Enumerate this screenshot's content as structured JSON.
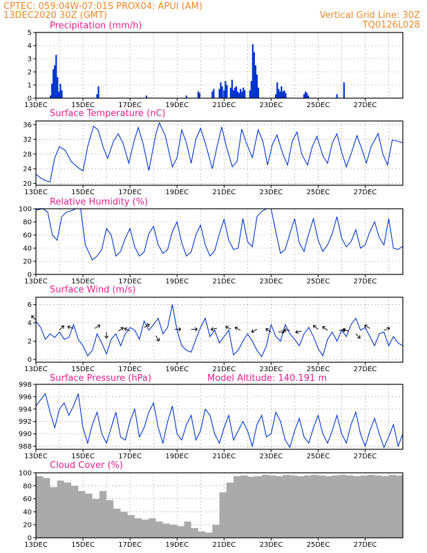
{
  "header": {
    "line1_left": "CPTEC:   059:04W-07:01S   PROX04: APUI (AM)",
    "line2_left": "13DEC2020 30Z (GMT)",
    "line1_right": "Vertical Grid Line: 30Z",
    "line2_right": "TQ0126L028"
  },
  "colors": {
    "header": "#e8892b",
    "title": "#e0218a",
    "series": "#0033cc",
    "cloud": "#aaaaaa"
  },
  "x_axis": {
    "tick_labels": [
      "13DEC",
      "15DEC",
      "17DEC",
      "19DEC",
      "21DEC",
      "23DEC",
      "25DEC",
      "27DEC"
    ],
    "tick_days": [
      0,
      2,
      4,
      6,
      8,
      10,
      12,
      14
    ],
    "range_days": [
      0,
      15.6
    ]
  },
  "chart_data": [
    {
      "type": "bar",
      "title": "Precipitation (mm/h)",
      "ylim": [
        0,
        5
      ],
      "yticks": [
        0,
        1,
        2,
        3,
        4,
        5
      ],
      "x_unit": "days since 13DEC 00Z",
      "points": [
        [
          0.62,
          0.2
        ],
        [
          0.68,
          1.1
        ],
        [
          0.74,
          2.2
        ],
        [
          0.8,
          2.5
        ],
        [
          0.86,
          3.3
        ],
        [
          0.92,
          1.6
        ],
        [
          0.98,
          0.5
        ],
        [
          1.04,
          1.1
        ],
        [
          1.1,
          0.6
        ],
        [
          2.6,
          0.3
        ],
        [
          2.66,
          0.9
        ],
        [
          4.7,
          0.2
        ],
        [
          6.4,
          0.2
        ],
        [
          6.9,
          0.5
        ],
        [
          6.96,
          0.4
        ],
        [
          7.5,
          0.5
        ],
        [
          7.56,
          0.7
        ],
        [
          7.8,
          0.7
        ],
        [
          7.86,
          1.2
        ],
        [
          7.92,
          0.9
        ],
        [
          8.0,
          0.6
        ],
        [
          8.06,
          1.3
        ],
        [
          8.12,
          1.0
        ],
        [
          8.28,
          0.8
        ],
        [
          8.34,
          1.4
        ],
        [
          8.4,
          0.6
        ],
        [
          8.46,
          0.8
        ],
        [
          8.52,
          0.9
        ],
        [
          8.58,
          0.5
        ],
        [
          8.64,
          0.4
        ],
        [
          8.7,
          0.7
        ],
        [
          8.76,
          0.5
        ],
        [
          8.82,
          0.8
        ],
        [
          8.88,
          0.6
        ],
        [
          9.1,
          0.6
        ],
        [
          9.16,
          1.3
        ],
        [
          9.22,
          4.1
        ],
        [
          9.28,
          3.5
        ],
        [
          9.34,
          2.5
        ],
        [
          9.4,
          1.8
        ],
        [
          9.46,
          0.8
        ],
        [
          10.2,
          0.3
        ],
        [
          10.26,
          1.2
        ],
        [
          10.32,
          0.7
        ],
        [
          10.38,
          0.5
        ],
        [
          10.44,
          0.9
        ],
        [
          10.5,
          0.5
        ],
        [
          10.56,
          0.6
        ],
        [
          10.62,
          0.4
        ],
        [
          11.4,
          0.3
        ],
        [
          11.46,
          0.5
        ],
        [
          11.52,
          0.4
        ],
        [
          11.58,
          0.2
        ],
        [
          12.8,
          0.3
        ],
        [
          13.1,
          1.2
        ]
      ]
    },
    {
      "type": "line",
      "title": "Surface Temperature (nC)",
      "ylim": [
        19.5,
        37
      ],
      "yticks": [
        20,
        24,
        28,
        32,
        36
      ],
      "x": [
        0.0,
        0.2,
        0.4,
        0.6,
        0.8,
        1.0,
        1.25,
        1.5,
        1.75,
        2.0,
        2.2,
        2.45,
        2.65,
        2.85,
        3.05,
        3.3,
        3.5,
        3.7,
        3.95,
        4.15,
        4.35,
        4.55,
        4.8,
        5.1,
        5.25,
        5.5,
        5.8,
        6.0,
        6.2,
        6.4,
        6.6,
        6.8,
        7.0,
        7.2,
        7.5,
        7.7,
        7.9,
        8.1,
        8.35,
        8.55,
        8.75,
        8.95,
        9.2,
        9.45,
        9.65,
        9.85,
        10.05,
        10.25,
        10.5,
        10.7,
        10.9,
        11.1,
        11.3,
        11.55,
        11.75,
        11.95,
        12.2,
        12.4,
        12.6,
        12.8,
        13.0,
        13.2,
        13.45,
        13.65,
        13.85,
        14.05,
        14.25,
        14.55,
        14.75,
        14.95,
        15.15,
        15.4,
        15.6
      ],
      "values": [
        22.5,
        21.5,
        20.8,
        20.4,
        27.0,
        30.0,
        29.0,
        26.0,
        24.5,
        23.4,
        30.0,
        35.6,
        34.5,
        30.0,
        26.8,
        31.5,
        33.5,
        31.0,
        25.5,
        31.0,
        35.2,
        31.0,
        23.5,
        33.4,
        36.5,
        33.0,
        24.5,
        27.0,
        34.6,
        31.0,
        25.5,
        32.0,
        35.0,
        31.0,
        24.0,
        30.0,
        35.4,
        30.0,
        24.5,
        26.0,
        34.8,
        31.0,
        27.0,
        34.6,
        31.5,
        25.0,
        30.5,
        33.2,
        28.0,
        25.0,
        31.5,
        34.0,
        28.0,
        25.0,
        30.0,
        32.8,
        27.5,
        25.5,
        31.0,
        33.5,
        28.5,
        24.5,
        29.0,
        33.0,
        29.5,
        25.5,
        30.0,
        33.6,
        28.0,
        25.0,
        31.8,
        31.5,
        31.0
      ]
    },
    {
      "type": "line",
      "title": "Relative Humidity (%)",
      "ylim": [
        0,
        100
      ],
      "yticks": [
        0,
        20,
        40,
        60,
        80,
        100
      ],
      "x": [
        0.0,
        0.3,
        0.5,
        0.7,
        0.9,
        1.1,
        1.3,
        1.5,
        1.7,
        1.9,
        2.1,
        2.4,
        2.6,
        2.8,
        3.0,
        3.2,
        3.4,
        3.6,
        3.8,
        4.0,
        4.2,
        4.4,
        4.6,
        4.8,
        5.0,
        5.2,
        5.4,
        5.6,
        5.8,
        6.0,
        6.2,
        6.4,
        6.6,
        6.8,
        7.0,
        7.2,
        7.4,
        7.6,
        7.8,
        8.0,
        8.2,
        8.4,
        8.6,
        8.8,
        9.0,
        9.2,
        9.4,
        9.6,
        9.8,
        10.0,
        10.2,
        10.4,
        10.6,
        10.8,
        11.0,
        11.2,
        11.4,
        11.6,
        11.8,
        12.0,
        12.2,
        12.4,
        12.6,
        12.8,
        13.0,
        13.2,
        13.4,
        13.6,
        13.8,
        14.0,
        14.2,
        14.4,
        14.6,
        14.8,
        15.0,
        15.2,
        15.4,
        15.6
      ],
      "values": [
        98,
        100,
        95,
        60,
        52,
        88,
        95,
        97,
        100,
        100,
        45,
        22,
        28,
        38,
        70,
        60,
        28,
        35,
        55,
        70,
        42,
        28,
        34,
        62,
        73,
        45,
        32,
        38,
        65,
        80,
        48,
        28,
        34,
        60,
        75,
        45,
        28,
        36,
        62,
        84,
        52,
        38,
        40,
        85,
        50,
        42,
        88,
        96,
        100,
        100,
        65,
        32,
        38,
        62,
        85,
        48,
        35,
        62,
        85,
        52,
        35,
        45,
        62,
        88,
        55,
        42,
        50,
        68,
        40,
        45,
        65,
        80,
        56,
        45,
        85,
        40,
        38,
        43
      ]
    },
    {
      "type": "line",
      "title": "Surface Wind (m/s)",
      "ylim": [
        -0.3,
        6.8
      ],
      "yticks": [
        0,
        2,
        4,
        6
      ],
      "x": [
        0.0,
        0.2,
        0.4,
        0.6,
        0.8,
        1.0,
        1.2,
        1.4,
        1.6,
        1.8,
        2.0,
        2.2,
        2.4,
        2.6,
        2.8,
        3.0,
        3.2,
        3.4,
        3.6,
        3.8,
        4.0,
        4.2,
        4.4,
        4.6,
        4.8,
        5.0,
        5.2,
        5.4,
        5.6,
        5.8,
        6.0,
        6.2,
        6.4,
        6.6,
        6.8,
        7.0,
        7.2,
        7.4,
        7.6,
        7.8,
        8.0,
        8.2,
        8.4,
        8.6,
        8.8,
        9.0,
        9.2,
        9.4,
        9.6,
        9.8,
        10.0,
        10.2,
        10.4,
        10.6,
        10.8,
        11.0,
        11.2,
        11.4,
        11.6,
        11.8,
        12.0,
        12.2,
        12.4,
        12.6,
        12.8,
        13.0,
        13.2,
        13.4,
        13.6,
        13.8,
        14.0,
        14.2,
        14.4,
        14.6,
        14.8,
        15.0,
        15.2,
        15.4,
        15.6
      ],
      "values": [
        4.2,
        3.5,
        2.2,
        2.8,
        2.4,
        3.0,
        2.2,
        2.4,
        3.8,
        2.2,
        1.5,
        0.4,
        1.0,
        2.8,
        1.8,
        0.6,
        2.2,
        2.8,
        1.5,
        2.8,
        3.5,
        3.2,
        2.2,
        4.2,
        3.2,
        3.8,
        4.5,
        2.8,
        3.5,
        6.0,
        3.2,
        1.5,
        1.0,
        0.8,
        2.2,
        3.5,
        4.5,
        2.5,
        3.2,
        1.8,
        2.5,
        3.2,
        0.5,
        1.0,
        2.0,
        2.8,
        2.0,
        1.0,
        0.3,
        1.5,
        3.8,
        2.5,
        2.0,
        3.8,
        2.8,
        2.2,
        1.5,
        2.8,
        3.5,
        2.5,
        1.2,
        0.4,
        2.2,
        3.0,
        2.0,
        3.2,
        2.5,
        3.8,
        4.5,
        3.2,
        3.5,
        2.5,
        1.5,
        2.8,
        3.0,
        1.5,
        2.5,
        1.8,
        1.5
      ]
    },
    {
      "type": "line",
      "title": "Surface Pressure (hPa)",
      "annotation": "Model Altitude: 140.191 m",
      "ylim": [
        987.5,
        998
      ],
      "yticks": [
        988,
        990,
        992,
        994,
        996,
        998
      ],
      "x": [
        0.0,
        0.2,
        0.4,
        0.6,
        0.8,
        1.0,
        1.2,
        1.4,
        1.6,
        1.8,
        2.0,
        2.2,
        2.4,
        2.6,
        2.8,
        3.0,
        3.2,
        3.4,
        3.6,
        3.8,
        4.0,
        4.2,
        4.4,
        4.6,
        4.8,
        5.0,
        5.2,
        5.4,
        5.6,
        5.8,
        6.0,
        6.2,
        6.4,
        6.6,
        6.8,
        7.0,
        7.2,
        7.4,
        7.6,
        7.8,
        8.0,
        8.2,
        8.4,
        8.6,
        8.8,
        9.0,
        9.2,
        9.4,
        9.6,
        9.8,
        10.0,
        10.2,
        10.4,
        10.6,
        10.8,
        11.0,
        11.2,
        11.4,
        11.6,
        11.8,
        12.0,
        12.2,
        12.4,
        12.6,
        12.8,
        13.0,
        13.2,
        13.4,
        13.6,
        13.8,
        14.0,
        14.2,
        14.4,
        14.6,
        14.8,
        15.0,
        15.2,
        15.4,
        15.6
      ],
      "values": [
        994.5,
        995.5,
        996.5,
        993.5,
        991.0,
        994.0,
        995.0,
        993.0,
        994.5,
        996.5,
        991.0,
        988.5,
        991.5,
        993.5,
        990.0,
        988.5,
        991.0,
        993.5,
        989.5,
        989.0,
        992.0,
        994.0,
        989.5,
        991.0,
        993.5,
        995.0,
        991.0,
        988.5,
        992.0,
        994.5,
        990.0,
        989.0,
        991.5,
        993.0,
        989.0,
        990.5,
        994.0,
        993.0,
        990.0,
        988.5,
        991.0,
        993.0,
        989.0,
        990.5,
        992.0,
        990.5,
        988.0,
        991.5,
        993.0,
        989.5,
        990.0,
        993.5,
        992.0,
        989.0,
        987.8,
        990.5,
        992.5,
        989.5,
        988.5,
        991.0,
        993.0,
        990.0,
        988.5,
        990.5,
        993.0,
        990.0,
        988.5,
        991.5,
        993.5,
        990.0,
        988.0,
        990.5,
        992.5,
        990.0,
        987.8,
        989.5,
        991.5,
        988.0,
        990.0
      ]
    },
    {
      "type": "area",
      "title": "Cloud Cover (%)",
      "ylim": [
        0,
        100
      ],
      "yticks": [
        0,
        20,
        40,
        60,
        80,
        100
      ],
      "x": [
        0.0,
        0.3,
        0.6,
        0.9,
        1.2,
        1.5,
        1.8,
        2.1,
        2.4,
        2.7,
        3.0,
        3.3,
        3.6,
        3.9,
        4.2,
        4.5,
        4.8,
        5.1,
        5.4,
        5.7,
        6.0,
        6.3,
        6.6,
        6.9,
        7.2,
        7.5,
        7.8,
        8.1,
        8.4,
        8.7,
        9.0,
        9.3,
        9.6,
        9.9,
        10.2,
        10.5,
        10.8,
        11.1,
        11.4,
        11.7,
        12.0,
        12.3,
        12.6,
        12.9,
        13.2,
        13.5,
        13.8,
        14.1,
        14.4,
        14.7,
        15.0,
        15.3,
        15.6
      ],
      "values": [
        95,
        92,
        78,
        88,
        85,
        80,
        72,
        68,
        60,
        72,
        58,
        45,
        40,
        35,
        30,
        28,
        30,
        25,
        22,
        20,
        18,
        25,
        15,
        10,
        8,
        20,
        70,
        85,
        95,
        96,
        94,
        95,
        97,
        96,
        95,
        97,
        96,
        95,
        96,
        97,
        96,
        95,
        96,
        97,
        96,
        95,
        96,
        97,
        96,
        95,
        97,
        96,
        95
      ]
    }
  ]
}
